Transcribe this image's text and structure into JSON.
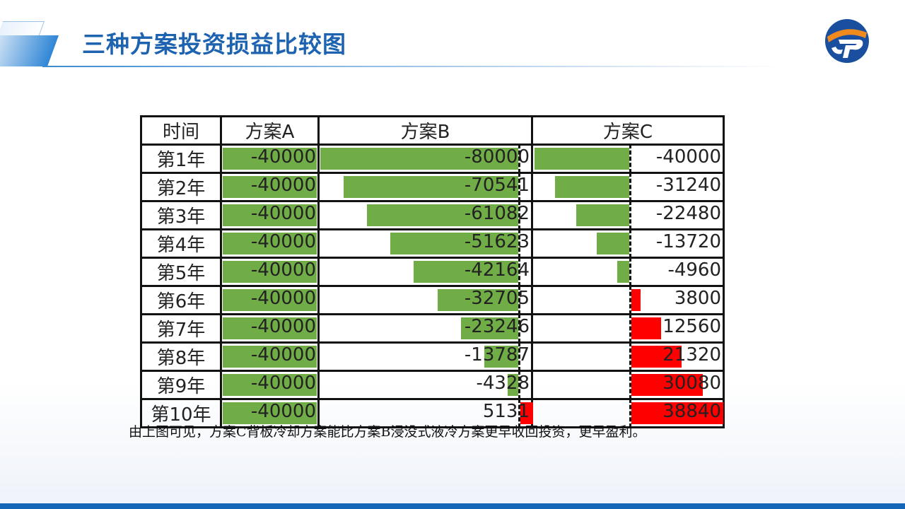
{
  "header": {
    "title": "三种方案投资损益比较图"
  },
  "colors": {
    "positive": "#ff0000",
    "negative": "#70ad47",
    "title": "#1d63b0",
    "footer": "#1565b8"
  },
  "chart_data": {
    "type": "table",
    "columns": [
      "时间",
      "方案A",
      "方案B",
      "方案C"
    ],
    "rows": [
      {
        "time": "第1年",
        "a": -40000,
        "b": -80000,
        "c": -40000
      },
      {
        "time": "第2年",
        "a": -40000,
        "b": -70541,
        "c": -31240
      },
      {
        "time": "第3年",
        "a": -40000,
        "b": -61082,
        "c": -22480
      },
      {
        "time": "第4年",
        "a": -40000,
        "b": -51623,
        "c": -13720
      },
      {
        "time": "第5年",
        "a": -40000,
        "b": -42164,
        "c": -4960
      },
      {
        "time": "第6年",
        "a": -40000,
        "b": -32705,
        "c": 3800
      },
      {
        "time": "第7年",
        "a": -40000,
        "b": -23246,
        "c": 12560
      },
      {
        "time": "第8年",
        "a": -40000,
        "b": -13787,
        "c": 21320
      },
      {
        "time": "第9年",
        "a": -40000,
        "b": -4328,
        "c": 30080
      },
      {
        "time": "第10年",
        "a": -40000,
        "b": 5131,
        "c": 38840
      }
    ],
    "data_bars": "green for negative, red for positive, dashed zero axis"
  },
  "note": "由上图可见，方案C背板冷却方案能比方案B浸没式液冷方案更早收回投资，更早盈利。"
}
